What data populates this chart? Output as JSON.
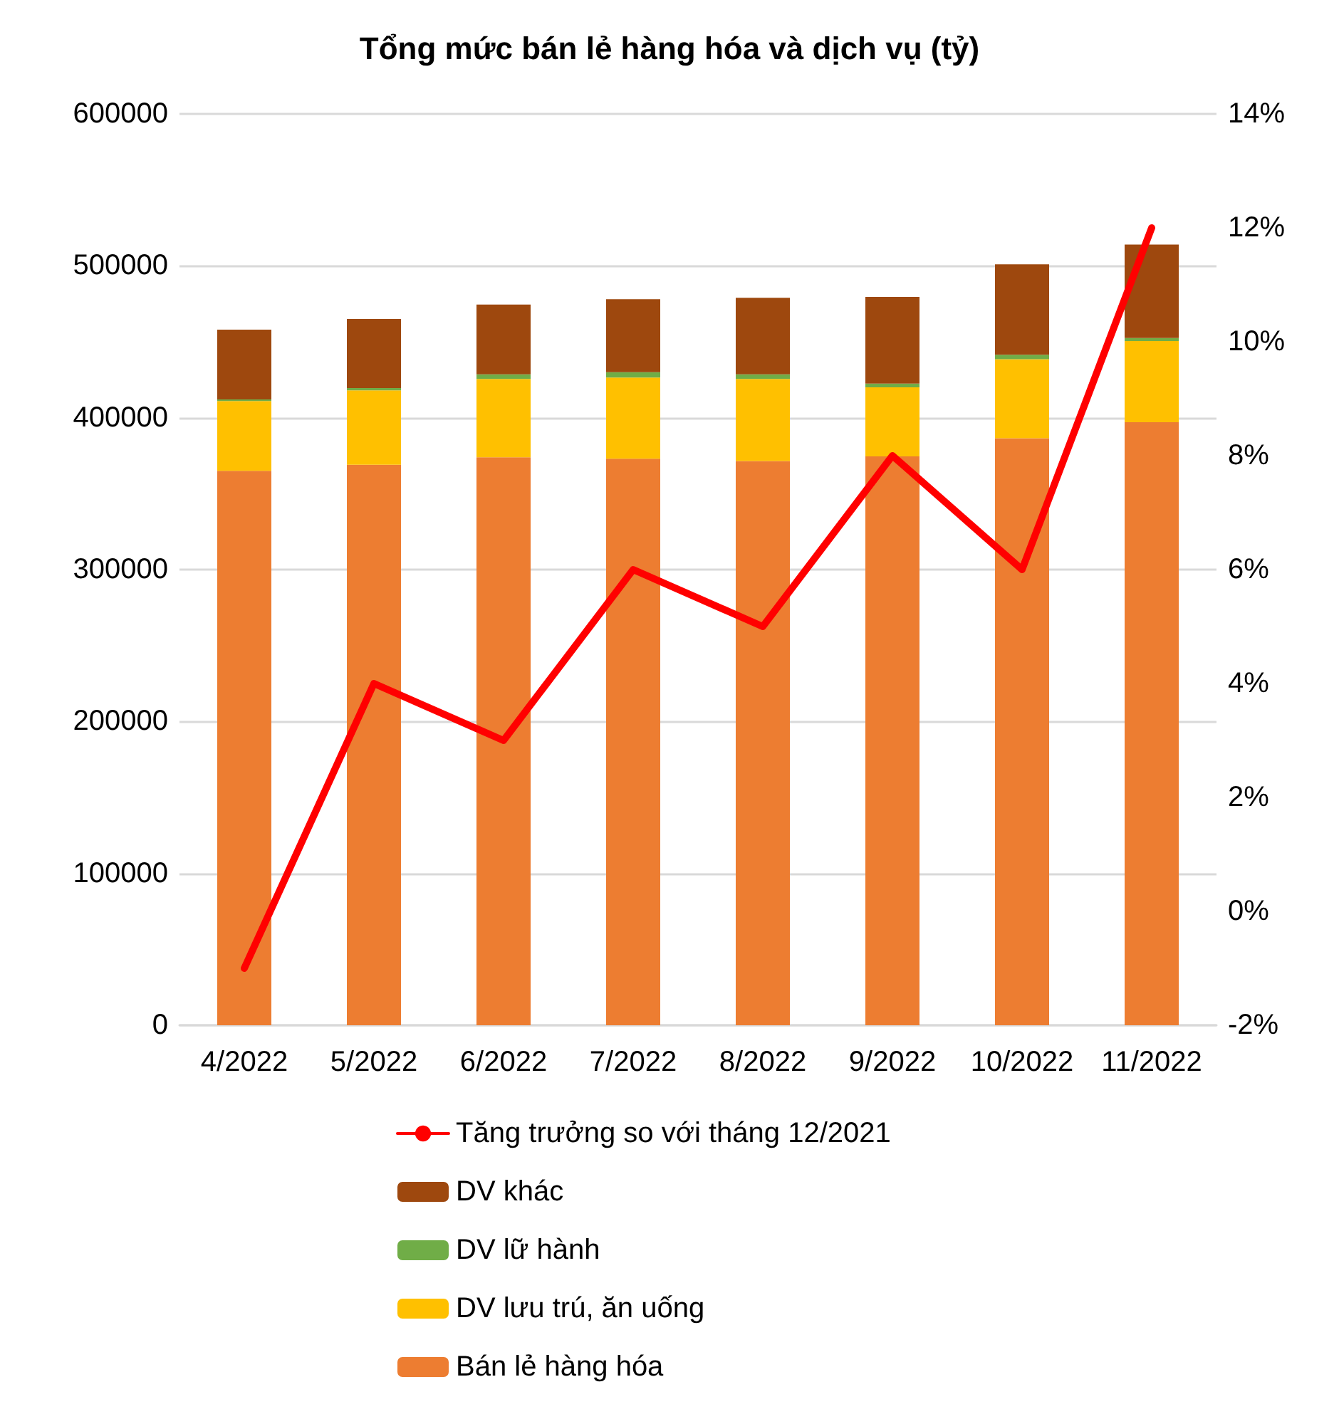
{
  "chart_data": {
    "type": "bar",
    "title": "Tổng mức bán lẻ hàng hóa và dịch vụ (tỷ)",
    "categories": [
      "4/2022",
      "5/2022",
      "6/2022",
      "7/2022",
      "8/2022",
      "9/2022",
      "10/2022",
      "11/2022"
    ],
    "stacked": true,
    "series": [
      {
        "name": "Bán lẻ hàng hóa",
        "color": "#ed7d31",
        "values": [
          365000,
          369000,
          374000,
          373000,
          371500,
          374500,
          386500,
          397000
        ]
      },
      {
        "name": "DV lưu trú, ăn uống",
        "color": "#ffc000",
        "values": [
          46000,
          49000,
          51500,
          53500,
          54000,
          45500,
          52000,
          53500
        ]
      },
      {
        "name": "DV lữ hành",
        "color": "#70ad47",
        "values": [
          1000,
          1500,
          3000,
          3500,
          3000,
          2500,
          3000,
          2000
        ]
      },
      {
        "name": "DV khác",
        "color": "#9e480e",
        "values": [
          46000,
          45500,
          46000,
          48000,
          50500,
          57000,
          59500,
          61500
        ]
      },
      {
        "name": "Tăng trưởng so với tháng 12/2021",
        "type": "line",
        "axis": "y2",
        "color": "#ff0000",
        "values": [
          -1,
          4,
          3,
          6,
          5,
          8,
          6,
          12
        ]
      }
    ],
    "ylim": [
      0,
      600000
    ],
    "yticks": [
      0,
      100000,
      200000,
      300000,
      400000,
      500000,
      600000
    ],
    "y2lim": [
      -2,
      14
    ],
    "y2ticks": [
      {
        "value": -2,
        "label": "-2%"
      },
      {
        "value": 0,
        "label": "0%"
      },
      {
        "value": 2,
        "label": "2%"
      },
      {
        "value": 4,
        "label": "4%"
      },
      {
        "value": 6,
        "label": "6%"
      },
      {
        "value": 8,
        "label": "8%"
      },
      {
        "value": 10,
        "label": "10%"
      },
      {
        "value": 12,
        "label": "12%"
      },
      {
        "value": 14,
        "label": "14%"
      }
    ],
    "grid": "y",
    "legend": "bottom",
    "marker": "none",
    "line_style": "solid"
  }
}
